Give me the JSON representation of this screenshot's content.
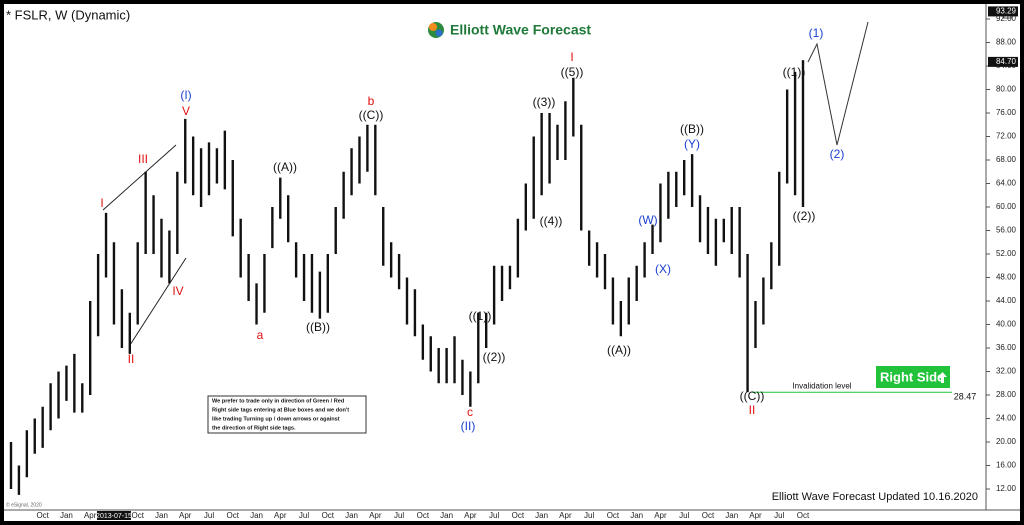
{
  "chart_data": {
    "type": "hilo",
    "title": "* FSLR, W (Dynamic)",
    "brand": "Elliott Wave Forecast",
    "footer": "Elliott Wave Forecast Updated 10.16.2020",
    "copyright": "© eSignal, 2020",
    "color": "#111111",
    "categories": [
      null,
      null,
      null,
      null,
      "Oct",
      null,
      null,
      "Jan",
      null,
      null,
      "Apr",
      null,
      null,
      "2013-07-15",
      null,
      null,
      "Oct",
      null,
      null,
      "Jan",
      null,
      null,
      "Apr",
      null,
      null,
      "Jul",
      null,
      null,
      "Oct",
      null,
      null,
      "Jan",
      null,
      null,
      "Apr",
      null,
      null,
      "Jul",
      null,
      null,
      "Oct",
      null,
      null,
      "Jan",
      null,
      null,
      "Apr",
      null,
      null,
      "Jul",
      null,
      null,
      "Oct",
      null,
      null,
      "Jan",
      null,
      null,
      "Apr",
      null,
      null,
      "Jul",
      null,
      null,
      "Oct",
      null,
      null,
      "Jan",
      null,
      null,
      "Apr",
      null,
      null,
      "Jul",
      null,
      null,
      "Oct",
      null,
      null,
      "Jan",
      null,
      null,
      "Apr",
      null,
      null,
      "Jul",
      null,
      null,
      "Oct",
      null,
      null,
      "Jan",
      null,
      null,
      "Apr",
      null,
      null,
      "Jul",
      null,
      null,
      "Oct"
    ],
    "low": [
      12,
      11,
      14,
      18,
      19,
      22,
      24,
      27,
      25,
      25,
      28,
      38,
      48,
      40,
      36,
      35,
      40,
      52,
      52,
      48,
      47,
      52,
      64,
      62,
      60,
      62,
      64,
      63,
      55,
      48,
      44,
      40,
      42,
      53,
      58,
      54,
      48,
      44,
      42,
      41,
      42,
      52,
      58,
      62,
      64,
      66,
      62,
      50,
      48,
      46,
      40,
      38,
      34,
      32,
      30,
      30,
      30,
      28,
      26,
      30,
      36,
      40,
      44,
      46,
      48,
      56,
      58,
      62,
      64,
      68,
      68,
      72,
      56,
      50,
      48,
      46,
      40,
      38,
      40,
      44,
      48,
      52,
      54,
      58,
      60,
      62,
      60,
      54,
      52,
      50,
      54,
      52,
      48,
      28.5,
      36,
      40,
      46,
      50,
      64,
      62,
      60
    ],
    "high": [
      20,
      16,
      22,
      24,
      26,
      30,
      32,
      33,
      35,
      30,
      44,
      52,
      59,
      54,
      46,
      42,
      54,
      66,
      62,
      58,
      56,
      66,
      75,
      72,
      70,
      71,
      70,
      73,
      68,
      58,
      52,
      47,
      52,
      60,
      65,
      62,
      54,
      52,
      52,
      49,
      52,
      60,
      66,
      70,
      72,
      74,
      74,
      60,
      54,
      52,
      48,
      46,
      40,
      38,
      36,
      36,
      38,
      34,
      32,
      42,
      42,
      50,
      50,
      50,
      58,
      64,
      72,
      76,
      76,
      74,
      78,
      82,
      74,
      56,
      54,
      52,
      48,
      44,
      48,
      50,
      54,
      57,
      64,
      66,
      66,
      68,
      69,
      62,
      60,
      58,
      58,
      60,
      60,
      52,
      44,
      48,
      54,
      66,
      80,
      83,
      85
    ],
    "ylim": [
      12,
      92
    ],
    "yticks": [
      {
        "value": 12,
        "label": "12.00"
      },
      {
        "value": 16,
        "label": "16.00"
      },
      {
        "value": 20,
        "label": "20.00"
      },
      {
        "value": 24,
        "label": "24.00"
      },
      {
        "value": 28,
        "label": "28.00"
      },
      {
        "value": 32,
        "label": "32.00"
      },
      {
        "value": 36,
        "label": "36.00"
      },
      {
        "value": 40,
        "label": "40.00"
      },
      {
        "value": 44,
        "label": "44.00"
      },
      {
        "value": 48,
        "label": "48.00"
      },
      {
        "value": 52,
        "label": "52.00"
      },
      {
        "value": 56,
        "label": "56.00"
      },
      {
        "value": 60,
        "label": "60.00"
      },
      {
        "value": 64,
        "label": "64.00"
      },
      {
        "value": 68,
        "label": "68.00"
      },
      {
        "value": 72,
        "label": "72.00"
      },
      {
        "value": 76,
        "label": "76.00"
      },
      {
        "value": 80,
        "label": "80.00"
      },
      {
        "value": 84,
        "label": "84.00"
      },
      {
        "value": 88,
        "label": "88.00"
      },
      {
        "value": 92,
        "label": "92.00"
      }
    ],
    "price_markers": [
      93.29,
      {
        "value": 84.7,
        "label": "84.70"
      }
    ],
    "invalidation": {
      "label": "Invalidation level",
      "value": 28.47
    },
    "right_side": "Right Side",
    "note": [
      "We prefer to trade only in direction of Green / Red",
      "Right side tags entering at Blue boxes and we don't",
      "like trading Turning up / down arrows or against",
      "the direction of Right side tags."
    ],
    "annotations": [
      {
        "text": "(I)",
        "color": "#1a3fd0"
      },
      {
        "text": "V",
        "color": "#e01010"
      },
      {
        "text": "III",
        "color": "#e01010"
      },
      {
        "text": "I",
        "color": "#e01010"
      },
      {
        "text": "IV",
        "color": "#e01010"
      },
      {
        "text": "II",
        "color": "#e01010"
      },
      {
        "text": "((A))",
        "color": "#111111"
      },
      {
        "text": "a",
        "color": "#e01010"
      },
      {
        "text": "((B))",
        "color": "#111111"
      },
      {
        "text": "b",
        "color": "#e01010"
      },
      {
        "text": "((C))",
        "color": "#111111"
      },
      {
        "text": "((1))",
        "color": "#111111"
      },
      {
        "text": "((2))",
        "color": "#111111"
      },
      {
        "text": "c",
        "color": "#e01010"
      },
      {
        "text": "(II)",
        "color": "#1a3fd0"
      },
      {
        "text": "((3))",
        "color": "#111111"
      },
      {
        "text": "((4))",
        "color": "#111111"
      },
      {
        "text": "I",
        "color": "#e01010"
      },
      {
        "text": "((5))",
        "color": "#111111"
      },
      {
        "text": "((A))",
        "color": "#111111"
      },
      {
        "text": "(W)",
        "color": "#1a3fd0"
      },
      {
        "text": "(X)",
        "color": "#1a3fd0"
      },
      {
        "text": "(Y)",
        "color": "#1a3fd0"
      },
      {
        "text": "((B))",
        "color": "#111111"
      },
      {
        "text": "((C))",
        "color": "#111111"
      },
      {
        "text": "II",
        "color": "#e01010"
      },
      {
        "text": "((1))",
        "color": "#111111"
      },
      {
        "text": "((2))",
        "color": "#111111"
      },
      {
        "text": "(1)",
        "color": "#1a3fd0"
      },
      {
        "text": "(2)",
        "color": "#1a3fd0"
      }
    ]
  }
}
